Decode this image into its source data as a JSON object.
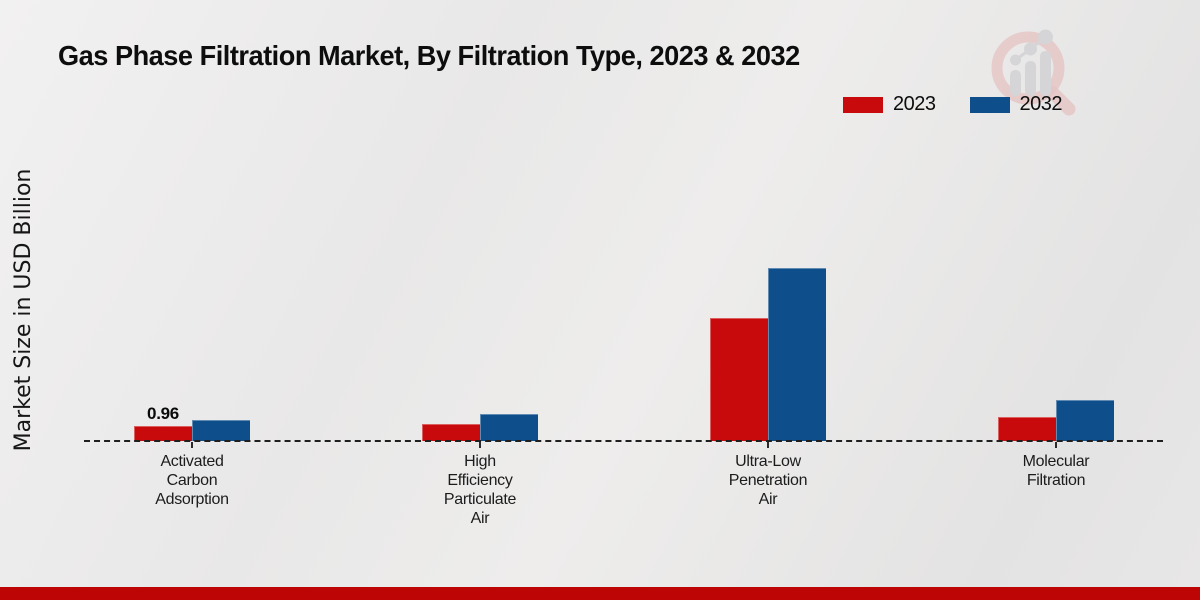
{
  "page": {
    "title": "Gas Phase Filtration Market, By Filtration Type, 2023 & 2032",
    "ylabel": "Market Size in USD Billion",
    "logo_name": "magnifier-bar-chart-logo",
    "footer_bar_color": "#bc0504"
  },
  "legend": {
    "items": [
      {
        "label": "2023",
        "color": "#c90a0c"
      },
      {
        "label": "2032",
        "color": "#0d4e8b"
      }
    ]
  },
  "chart_data": {
    "type": "bar",
    "title": "Gas Phase Filtration Market, By Filtration Type, 2023 & 2032",
    "xlabel": "",
    "ylabel": "Market Size in USD Billion",
    "categories": [
      "Activated Carbon Adsorption",
      "High Efficiency Particulate Air",
      "Ultra-Low Penetration Air",
      "Molecular Filtration"
    ],
    "category_labels": [
      [
        "Activated",
        "Carbon",
        "Adsorption"
      ],
      [
        "High",
        "Efficiency",
        "Particulate",
        "Air"
      ],
      [
        "Ultra-Low",
        "Penetration",
        "Air"
      ],
      [
        "Molecular",
        "Filtration"
      ]
    ],
    "series": [
      {
        "name": "2023",
        "color": "#c90a0c",
        "values": [
          0.96,
          1.1,
          7.9,
          1.55
        ]
      },
      {
        "name": "2032",
        "color": "#0d4e8b",
        "values": [
          1.35,
          1.75,
          11.1,
          2.65
        ]
      }
    ],
    "bar_labels": [
      {
        "series_index": 0,
        "category_index": 0,
        "text": "0.96"
      }
    ],
    "ylim": [
      0,
      12
    ],
    "grid": false,
    "y_axis_ticks_visible": false,
    "baseline_style": "dashed",
    "legend_position": "top-right"
  }
}
